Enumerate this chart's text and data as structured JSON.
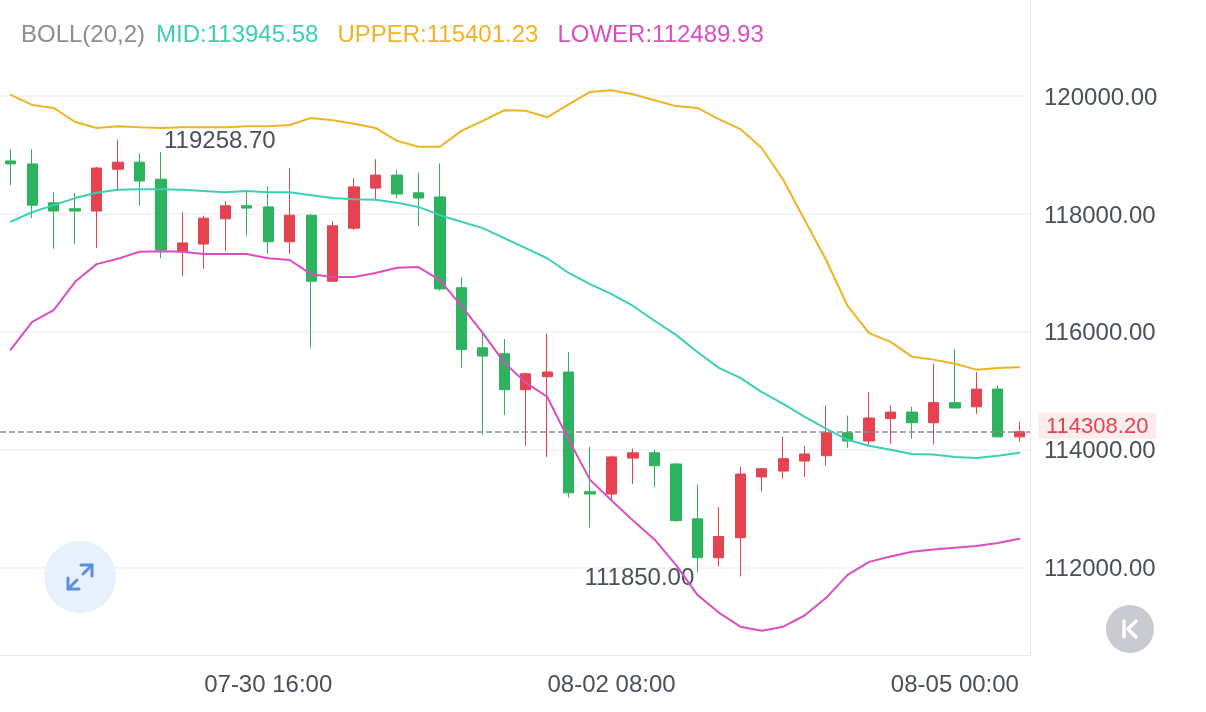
{
  "chart_data": {
    "type": "candlestick",
    "title": "BOLL(20,2)",
    "categories": [
      null,
      null,
      null,
      null,
      null,
      null,
      null,
      null,
      null,
      null,
      null,
      null,
      "07-30 16:00",
      null,
      null,
      null,
      null,
      null,
      null,
      null,
      null,
      null,
      null,
      null,
      null,
      null,
      null,
      null,
      "08-02 08:00",
      null,
      null,
      null,
      null,
      null,
      null,
      null,
      null,
      null,
      null,
      null,
      null,
      null,
      null,
      null,
      "08-05 00:00",
      null,
      null,
      null
    ],
    "ohlc": [
      [
        118900,
        119100,
        118490,
        118850
      ],
      [
        118850,
        119100,
        117930,
        118150
      ],
      [
        118190,
        118370,
        117410,
        118050
      ],
      [
        118090,
        118360,
        117490,
        118050
      ],
      [
        118050,
        118800,
        117420,
        118780
      ],
      [
        118760,
        119258.7,
        118390,
        118880
      ],
      [
        118880,
        119030,
        118140,
        118560
      ],
      [
        118590,
        119050,
        117250,
        117390
      ],
      [
        117360,
        118030,
        116950,
        117510
      ],
      [
        117490,
        117970,
        117070,
        117930
      ],
      [
        117920,
        118220,
        117370,
        118140
      ],
      [
        118140,
        118370,
        117630,
        118100
      ],
      [
        118120,
        118470,
        117320,
        117530
      ],
      [
        117530,
        118780,
        117320,
        117980
      ],
      [
        117980,
        118000,
        115730,
        116860
      ],
      [
        116860,
        117880,
        116850,
        117800
      ],
      [
        117760,
        118610,
        117730,
        118460
      ],
      [
        118440,
        118930,
        118250,
        118660
      ],
      [
        118660,
        118750,
        118270,
        118340
      ],
      [
        118360,
        118700,
        117800,
        118270
      ],
      [
        118290,
        118860,
        116700,
        116730
      ],
      [
        116750,
        116930,
        115390,
        115700
      ],
      [
        115730,
        116000,
        114250,
        115590
      ],
      [
        115630,
        115880,
        114590,
        115020
      ],
      [
        115020,
        115310,
        114070,
        115290
      ],
      [
        115240,
        115970,
        113880,
        115320
      ],
      [
        115320,
        115660,
        113190,
        113270
      ],
      [
        113290,
        114050,
        112680,
        113250
      ],
      [
        113250,
        113900,
        113150,
        113880
      ],
      [
        113860,
        114020,
        113420,
        113950
      ],
      [
        113950,
        114000,
        113370,
        113730
      ],
      [
        113760,
        113780,
        112780,
        112800
      ],
      [
        112830,
        113410,
        111920,
        112170
      ],
      [
        112170,
        113030,
        112020,
        112530
      ],
      [
        112510,
        113710,
        111850,
        113590
      ],
      [
        113540,
        113690,
        113290,
        113680
      ],
      [
        113640,
        114220,
        113510,
        113850
      ],
      [
        113810,
        114070,
        113540,
        113930
      ],
      [
        113900,
        114750,
        113730,
        114290
      ],
      [
        114290,
        114580,
        114030,
        114150
      ],
      [
        114150,
        114980,
        114070,
        114540
      ],
      [
        114530,
        114760,
        114100,
        114640
      ],
      [
        114640,
        114730,
        114190,
        114460
      ],
      [
        114460,
        115460,
        114090,
        114800
      ],
      [
        114800,
        115710,
        114700,
        114710
      ],
      [
        114730,
        115320,
        114610,
        115030
      ],
      [
        115030,
        115090,
        114220,
        114220
      ],
      [
        114220,
        114480,
        114140,
        114308.2
      ]
    ],
    "colors": [
      "#2db35d",
      "#2db35d",
      "#2db35d",
      "#2db35d",
      "#e5434f",
      "#e5434f",
      "#2db35d",
      "#2db35d",
      "#e5434f",
      "#e5434f",
      "#e5434f",
      "#2db35d",
      "#2db35d",
      "#e5434f",
      "#2db35d",
      "#e5434f",
      "#e5434f",
      "#e5434f",
      "#2db35d",
      "#2db35d",
      "#2db35d",
      "#2db35d",
      "#2db35d",
      "#2db35d",
      "#e5434f",
      "#e5434f",
      "#2db35d",
      "#2db35d",
      "#e5434f",
      "#e5434f",
      "#2db35d",
      "#2db35d",
      "#2db35d",
      "#e5434f",
      "#e5434f",
      "#e5434f",
      "#e5434f",
      "#e5434f",
      "#e5434f",
      "#2db35d",
      "#e5434f",
      "#e5434f",
      "#2db35d",
      "#e5434f",
      "#2db35d",
      "#e5434f",
      "#2db35d",
      "#e5434f"
    ],
    "series": [
      {
        "type": "line",
        "name": "MID:113945.58",
        "color": "#3ccfb4",
        "values": [
          117870,
          118030,
          118150,
          118270,
          118360,
          118410,
          118420,
          118420,
          118410,
          118390,
          118370,
          118390,
          118370,
          118370,
          118320,
          118270,
          118250,
          118240,
          118190,
          118120,
          117980,
          117870,
          117760,
          117590,
          117420,
          117250,
          117000,
          116810,
          116640,
          116440,
          116190,
          115950,
          115660,
          115390,
          115220,
          114980,
          114780,
          114560,
          114360,
          114170,
          114070,
          114000,
          113930,
          113920,
          113880,
          113860,
          113900,
          113950
        ]
      },
      {
        "type": "line",
        "name": "UPPER:115401.23",
        "color": "#f0b323",
        "values": [
          120020,
          119850,
          119800,
          119560,
          119460,
          119490,
          119470,
          119460,
          119470,
          119470,
          119470,
          119490,
          119490,
          119510,
          119630,
          119590,
          119530,
          119460,
          119240,
          119140,
          119140,
          119410,
          119580,
          119760,
          119750,
          119640,
          119860,
          120070,
          120100,
          120030,
          119930,
          119830,
          119800,
          119610,
          119440,
          119120,
          118580,
          117900,
          117220,
          116440,
          115980,
          115830,
          115580,
          115530,
          115460,
          115360,
          115390,
          115400
        ]
      },
      {
        "type": "line",
        "name": "LOWER:112489.93",
        "color": "#d94ec3",
        "values": [
          115700,
          116170,
          116370,
          116850,
          117150,
          117240,
          117360,
          117370,
          117360,
          117320,
          117320,
          117320,
          117250,
          117220,
          116980,
          116930,
          116930,
          117000,
          117090,
          117100,
          116880,
          116440,
          115980,
          115480,
          115140,
          114900,
          114170,
          113490,
          113140,
          112800,
          112480,
          112050,
          111540,
          111240,
          111000,
          110930,
          111000,
          111190,
          111490,
          111880,
          112100,
          112190,
          112270,
          112310,
          112340,
          112370,
          112420,
          112490
        ]
      }
    ],
    "ylim": [
      110520,
      121630
    ],
    "yticks": [
      {
        "value": 112000,
        "label": "112000.00"
      },
      {
        "value": 114000,
        "label": "114000.00"
      },
      {
        "value": 116000,
        "label": "116000.00"
      },
      {
        "value": 118000,
        "label": "118000.00"
      },
      {
        "value": 120000,
        "label": "120000.00"
      }
    ],
    "grid": "y",
    "legend": "top",
    "marker": "none",
    "line_style": "solid",
    "ref_lines": [
      {
        "axis": "y",
        "value": 114308.2,
        "label": "114308.20",
        "color": "#8b8f99",
        "line_style": "dashed"
      }
    ],
    "annotations": [
      "119258.70",
      "111850.00"
    ]
  }
}
